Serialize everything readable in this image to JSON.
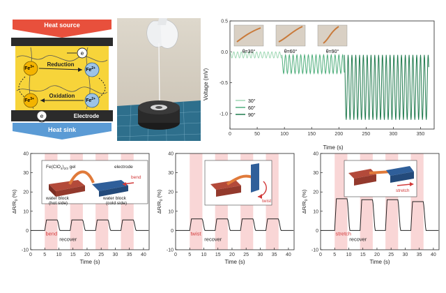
{
  "schematic": {
    "heat_source": "Heat source",
    "heat_sink": "Heat sink",
    "electrode": "Electrode",
    "reduction": "Reduction",
    "oxidation": "Oxidation",
    "electron": "e",
    "fe3": "Fe",
    "fe3_sup": "3+",
    "fe2": "Fe",
    "fe2_sup": "2+",
    "colors": {
      "heat": "#e8503c",
      "sink": "#5b9bd5",
      "gel": "#f7d43a",
      "fe3": "#f4b400",
      "fe2": "#9dc3e6"
    }
  },
  "photo": {
    "description_icons": [
      "glove-hand-icon",
      "fiber-spool-icon"
    ]
  },
  "voltage_chart": {
    "ylabel": "Voltage (mV)",
    "xlabel": "Time (s)",
    "ylim": [
      -1.25,
      0.5
    ],
    "xlim": [
      0,
      375
    ],
    "yticks": [
      "0.5",
      "0.0",
      "-0.5",
      "-1.0"
    ],
    "xticks": [
      "0",
      "50",
      "100",
      "150",
      "200",
      "250",
      "300",
      "350"
    ],
    "legend": [
      "30°",
      "60°",
      "90°"
    ],
    "inset_labels": [
      "θ=30°",
      "θ=60°",
      "θ=90°"
    ],
    "colors": [
      "#9fd8b4",
      "#4fae7c",
      "#1f7a4d"
    ]
  },
  "chart_data": [
    {
      "type": "line",
      "title": "",
      "xlabel": "Time (s)",
      "ylabel": "Voltage (mV)",
      "series": [
        {
          "name": "30°",
          "x_range": [
            0,
            95
          ],
          "baseline": 0.0,
          "amplitude": -0.1,
          "period": 7
        },
        {
          "name": "60°",
          "x_range": [
            95,
            210
          ],
          "baseline": -0.05,
          "amplitude": -0.3,
          "period": 7
        },
        {
          "name": "90°",
          "x_range": [
            210,
            365
          ],
          "baseline": -0.05,
          "amplitude": -1.05,
          "period": 7
        }
      ]
    },
    {
      "type": "line",
      "xlabel": "Time (s)",
      "ylabel": "ΔR/R0 (%)",
      "xlim": [
        0,
        42
      ],
      "ylim": [
        -10,
        40
      ],
      "peaks": [
        5.5,
        5.5,
        5.5,
        5.5
      ],
      "period_s": 9,
      "action": "bend"
    },
    {
      "type": "line",
      "xlabel": "Time (s)",
      "ylabel": "ΔR/R0 (%)",
      "xlim": [
        0,
        42
      ],
      "ylim": [
        -10,
        40
      ],
      "peaks": [
        6,
        6,
        6,
        6
      ],
      "period_s": 9,
      "action": "twist"
    },
    {
      "type": "line",
      "xlabel": "Time (s)",
      "ylabel": "ΔR/R0 (%)",
      "xlim": [
        0,
        42
      ],
      "ylim": [
        -10,
        40
      ],
      "peaks": [
        16.5,
        16,
        16,
        15
      ],
      "period_s": 9,
      "action": "stretch"
    }
  ],
  "bottom_panels": [
    {
      "ylabel": "ΔR/R",
      "ylabel_sub": "0",
      "ylabel_unit": " (%)",
      "xlabel": "Time (s)",
      "action_label": "bend",
      "recover_label": "recover",
      "inset_gel": "Fe(ClO",
      "inset_gel_sub1": "4",
      "inset_gel_mid": ")",
      "inset_gel_sub2": "2/3",
      "inset_gel_end": " gel",
      "inset_electrode": "electrode",
      "inset_wb_hot": "water block",
      "inset_hot": "(hot side)",
      "inset_wb_cold": "water block",
      "inset_cold": "(cold side)",
      "inset_action": "bend"
    },
    {
      "ylabel": "ΔR/R",
      "ylabel_sub": "0",
      "ylabel_unit": " (%)",
      "xlabel": "Time (s)",
      "action_label": "twist",
      "recover_label": "recover",
      "inset_action": "twist"
    },
    {
      "ylabel": "ΔR/R",
      "ylabel_sub": "0",
      "ylabel_unit": " (%)",
      "xlabel": "Time (s)",
      "action_label": "stretch",
      "recover_label": "recover",
      "inset_action": "stretch"
    }
  ],
  "bottom_axes": {
    "yticks": [
      "40",
      "30",
      "20",
      "10",
      "0",
      "-10"
    ],
    "xticks": [
      "0",
      "5",
      "10",
      "15",
      "20",
      "25",
      "30",
      "35",
      "40"
    ],
    "band_color": "#f9d6d6"
  }
}
